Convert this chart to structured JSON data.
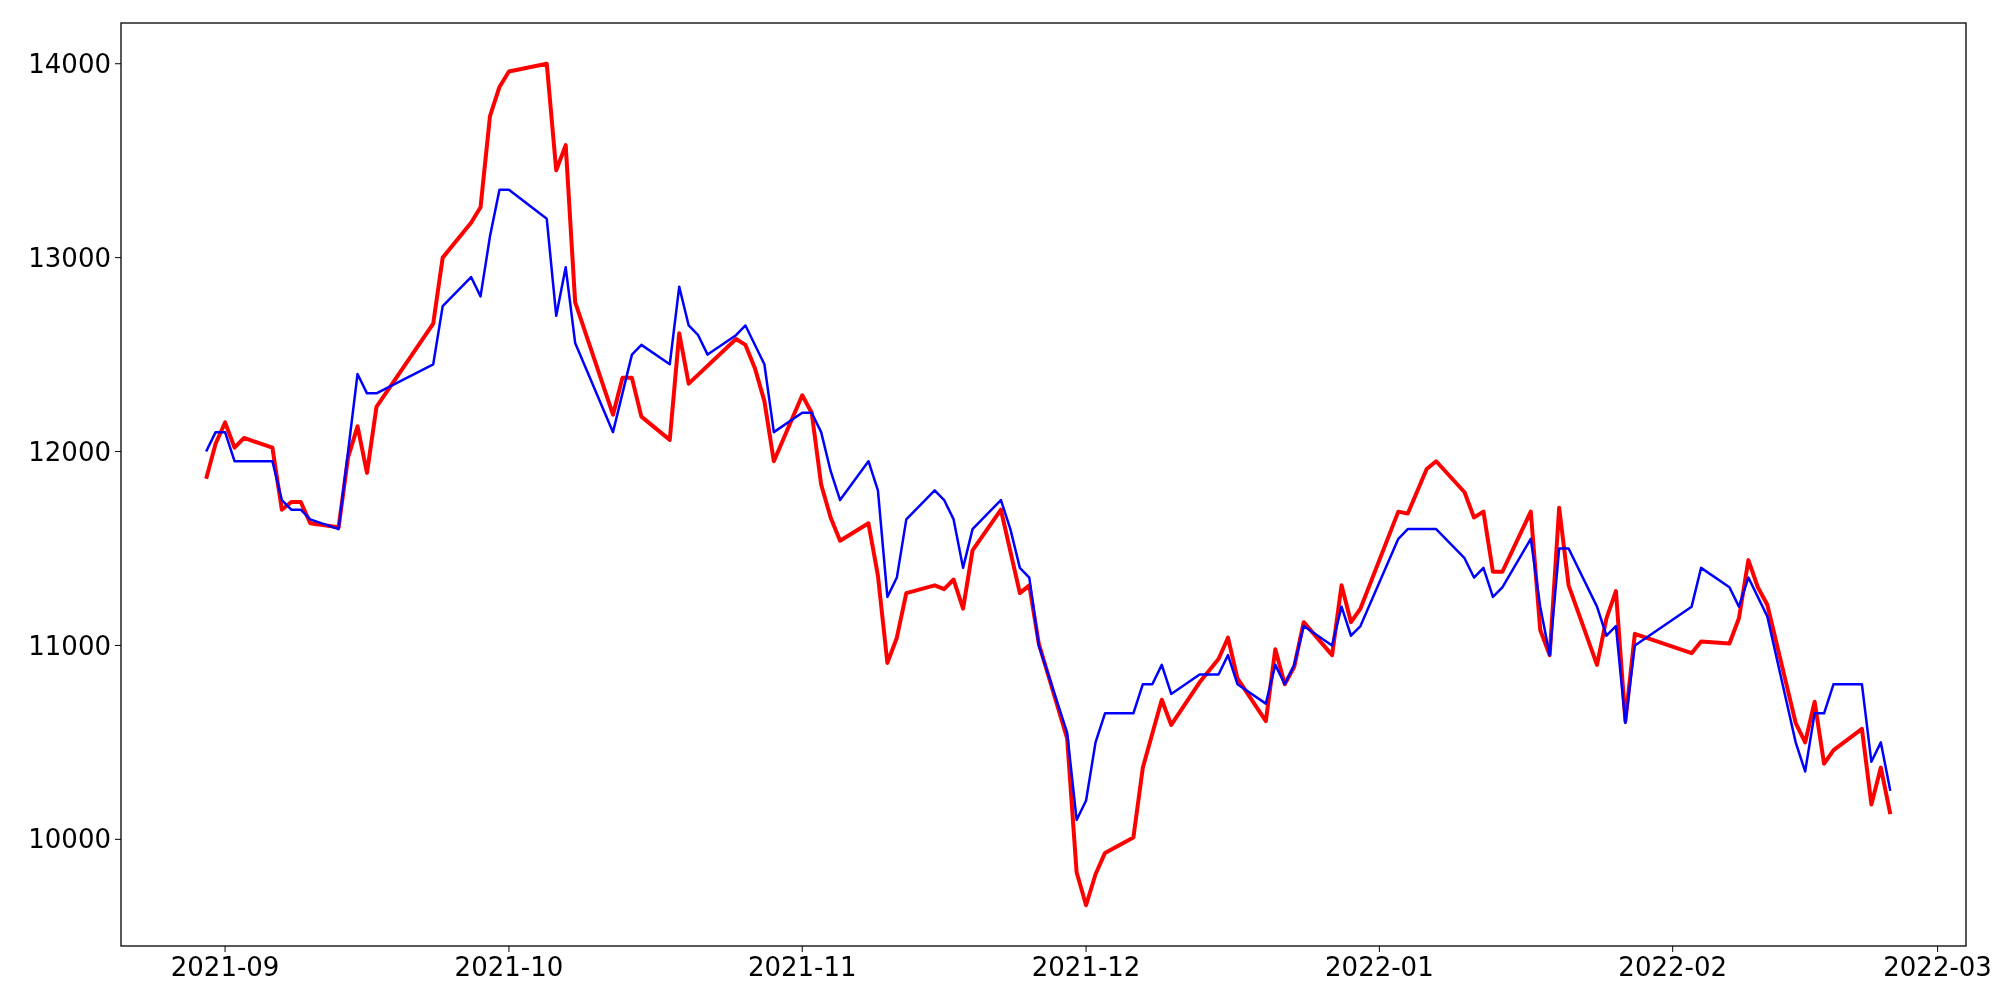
{
  "chart_data": {
    "type": "line",
    "xlim": [
      "2021-08-21",
      "2022-03-04"
    ],
    "ylim": [
      9450,
      14210
    ],
    "xticks": [
      {
        "value": "2021-09-01",
        "label": "2021-09"
      },
      {
        "value": "2021-10-01",
        "label": "2021-10"
      },
      {
        "value": "2021-11-01",
        "label": "2021-11"
      },
      {
        "value": "2021-12-01",
        "label": "2021-12"
      },
      {
        "value": "2022-01-01",
        "label": "2022-01"
      },
      {
        "value": "2022-02-01",
        "label": "2022-02"
      },
      {
        "value": "2022-03-01",
        "label": "2022-03"
      }
    ],
    "yticks": [
      10000,
      11000,
      12000,
      13000,
      14000
    ],
    "grid": false,
    "marker": "none",
    "line_style": "solid",
    "series": [
      {
        "color": "#ff0000",
        "x": [
          "2021-08-30",
          "2021-08-31",
          "2021-09-01",
          "2021-09-02",
          "2021-09-03",
          "2021-09-06",
          "2021-09-07",
          "2021-09-08",
          "2021-09-09",
          "2021-09-10",
          "2021-09-13",
          "2021-09-14",
          "2021-09-15",
          "2021-09-16",
          "2021-09-17",
          "2021-09-23",
          "2021-09-24",
          "2021-09-27",
          "2021-09-28",
          "2021-09-29",
          "2021-09-30",
          "2021-10-01",
          "2021-10-05",
          "2021-10-06",
          "2021-10-07",
          "2021-10-08",
          "2021-10-12",
          "2021-10-13",
          "2021-10-14",
          "2021-10-15",
          "2021-10-18",
          "2021-10-19",
          "2021-10-20",
          "2021-10-25",
          "2021-10-26",
          "2021-10-27",
          "2021-10-28",
          "2021-10-29",
          "2021-11-01",
          "2021-11-02",
          "2021-11-03",
          "2021-11-04",
          "2021-11-05",
          "2021-11-08",
          "2021-11-09",
          "2021-11-10",
          "2021-11-11",
          "2021-11-12",
          "2021-11-15",
          "2021-11-16",
          "2021-11-17",
          "2021-11-18",
          "2021-11-19",
          "2021-11-22",
          "2021-11-24",
          "2021-11-25",
          "2021-11-26",
          "2021-11-29",
          "2021-11-30",
          "2021-12-01",
          "2021-12-02",
          "2021-12-03",
          "2021-12-06",
          "2021-12-07",
          "2021-12-09",
          "2021-12-10",
          "2021-12-13",
          "2021-12-15",
          "2021-12-16",
          "2021-12-17",
          "2021-12-20",
          "2021-12-21",
          "2021-12-22",
          "2021-12-23",
          "2021-12-24",
          "2021-12-27",
          "2021-12-28",
          "2021-12-29",
          "2021-12-30",
          "2022-01-03",
          "2022-01-04",
          "2022-01-06",
          "2022-01-07",
          "2022-01-10",
          "2022-01-11",
          "2022-01-12",
          "2022-01-13",
          "2022-01-14",
          "2022-01-17",
          "2022-01-18",
          "2022-01-19",
          "2022-01-20",
          "2022-01-21",
          "2022-01-24",
          "2022-01-25",
          "2022-01-26",
          "2022-01-27",
          "2022-01-28",
          "2022-02-03",
          "2022-02-04",
          "2022-02-07",
          "2022-02-08",
          "2022-02-09",
          "2022-02-10",
          "2022-02-11",
          "2022-02-14",
          "2022-02-15",
          "2022-02-16",
          "2022-02-17",
          "2022-02-18",
          "2022-02-21",
          "2022-02-22",
          "2022-02-23",
          "2022-02-24"
        ],
        "values": [
          11860,
          12040,
          12150,
          12020,
          12070,
          12020,
          11700,
          11740,
          11740,
          11630,
          11610,
          11970,
          12130,
          11890,
          12230,
          12660,
          13000,
          13180,
          13260,
          13730,
          13880,
          13960,
          14000,
          13450,
          13580,
          12770,
          12190,
          12380,
          12380,
          12180,
          12060,
          12610,
          12350,
          12580,
          12550,
          12430,
          12260,
          11950,
          12290,
          12200,
          11830,
          11660,
          11540,
          11630,
          11360,
          10910,
          11040,
          11270,
          11310,
          11290,
          11340,
          11190,
          11490,
          11700,
          11270,
          11310,
          11010,
          10520,
          9830,
          9660,
          9820,
          9930,
          10010,
          10370,
          10720,
          10590,
          10810,
          10930,
          11040,
          10830,
          10610,
          10980,
          10800,
          10890,
          11120,
          10950,
          11310,
          11120,
          11190,
          11690,
          11680,
          11910,
          11950,
          11790,
          11660,
          11690,
          11380,
          11380,
          11690,
          11080,
          10950,
          11710,
          11310,
          10900,
          11140,
          11280,
          10610,
          11060,
          10960,
          11020,
          11010,
          11140,
          11440,
          11300,
          11210,
          10600,
          10500,
          10710,
          10390,
          10460,
          10570,
          10180,
          10370,
          10130
        ]
      },
      {
        "color": "#0000ff",
        "x": [
          "2021-08-30",
          "2021-08-31",
          "2021-09-01",
          "2021-09-02",
          "2021-09-06",
          "2021-09-07",
          "2021-09-08",
          "2021-09-09",
          "2021-09-10",
          "2021-09-13",
          "2021-09-15",
          "2021-09-16",
          "2021-09-17",
          "2021-09-23",
          "2021-09-24",
          "2021-09-27",
          "2021-09-28",
          "2021-09-29",
          "2021-09-30",
          "2021-10-01",
          "2021-10-05",
          "2021-10-06",
          "2021-10-07",
          "2021-10-08",
          "2021-10-12",
          "2021-10-14",
          "2021-10-15",
          "2021-10-18",
          "2021-10-19",
          "2021-10-20",
          "2021-10-21",
          "2021-10-22",
          "2021-10-25",
          "2021-10-26",
          "2021-10-28",
          "2021-10-29",
          "2021-11-01",
          "2021-11-02",
          "2021-11-03",
          "2021-11-04",
          "2021-11-05",
          "2021-11-08",
          "2021-11-09",
          "2021-11-10",
          "2021-11-11",
          "2021-11-12",
          "2021-11-15",
          "2021-11-16",
          "2021-11-17",
          "2021-11-18",
          "2021-11-19",
          "2021-11-22",
          "2021-11-23",
          "2021-11-24",
          "2021-11-25",
          "2021-11-26",
          "2021-11-29",
          "2021-11-30",
          "2021-12-01",
          "2021-12-02",
          "2021-12-03",
          "2021-12-06",
          "2021-12-07",
          "2021-12-08",
          "2021-12-09",
          "2021-12-10",
          "2021-12-13",
          "2021-12-15",
          "2021-12-16",
          "2021-12-17",
          "2021-12-20",
          "2021-12-21",
          "2021-12-22",
          "2021-12-23",
          "2021-12-24",
          "2021-12-27",
          "2021-12-28",
          "2021-12-29",
          "2021-12-30",
          "2022-01-03",
          "2022-01-04",
          "2022-01-07",
          "2022-01-10",
          "2022-01-11",
          "2022-01-12",
          "2022-01-13",
          "2022-01-14",
          "2022-01-17",
          "2022-01-18",
          "2022-01-19",
          "2022-01-20",
          "2022-01-21",
          "2022-01-24",
          "2022-01-25",
          "2022-01-26",
          "2022-01-27",
          "2022-01-28",
          "2022-02-03",
          "2022-02-04",
          "2022-02-07",
          "2022-02-08",
          "2022-02-09",
          "2022-02-11",
          "2022-02-14",
          "2022-02-15",
          "2022-02-16",
          "2022-02-17",
          "2022-02-18",
          "2022-02-21",
          "2022-02-22",
          "2022-02-23",
          "2022-02-24"
        ],
        "values": [
          12000,
          12100,
          12100,
          11950,
          11950,
          11750,
          11700,
          11700,
          11650,
          11600,
          12400,
          12300,
          12300,
          12450,
          12750,
          12900,
          12800,
          13110,
          13350,
          13350,
          13200,
          12700,
          12950,
          12560,
          12100,
          12500,
          12550,
          12450,
          12850,
          12650,
          12600,
          12500,
          12600,
          12650,
          12450,
          12100,
          12200,
          12200,
          12100,
          11900,
          11750,
          11950,
          11800,
          11250,
          11350,
          11650,
          11800,
          11750,
          11650,
          11400,
          11600,
          11750,
          11600,
          11400,
          11350,
          11000,
          10550,
          10100,
          10200,
          10500,
          10650,
          10650,
          10800,
          10800,
          10900,
          10750,
          10850,
          10850,
          10950,
          10800,
          10700,
          10900,
          10800,
          10900,
          11100,
          11000,
          11200,
          11050,
          11100,
          11550,
          11600,
          11600,
          11450,
          11350,
          11400,
          11250,
          11300,
          11550,
          11200,
          10950,
          11500,
          11500,
          11200,
          11050,
          11100,
          10600,
          11000,
          11200,
          11400,
          11300,
          11200,
          11350,
          11150,
          10500,
          10350,
          10650,
          10650,
          10800,
          10800,
          10400,
          10500,
          10250
        ]
      }
    ]
  }
}
